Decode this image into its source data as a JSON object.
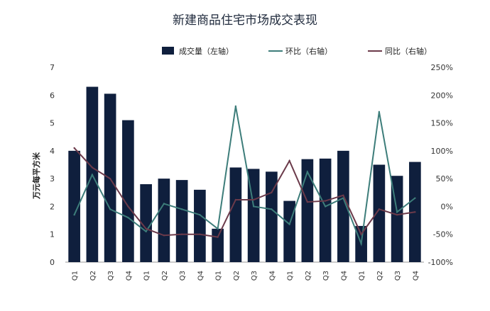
{
  "chart_data": {
    "type": "bar",
    "title": "新建商品住宅市场成交表现",
    "ylabel": "万元每平方米",
    "ylabel_right": "",
    "categories": [
      "Q1",
      "Q2",
      "Q3",
      "Q4",
      "Q1",
      "Q2",
      "Q3",
      "Q4",
      "Q1",
      "Q2",
      "Q3",
      "Q4",
      "Q1",
      "Q2",
      "Q3",
      "Q4",
      "Q1",
      "Q2",
      "Q3",
      "Q4"
    ],
    "ylim": [
      0,
      7
    ],
    "y2lim": [
      -100,
      250
    ],
    "y_ticks": [
      "0",
      "1",
      "2",
      "3",
      "4",
      "5",
      "6",
      "7"
    ],
    "y2_ticks": [
      "-100%",
      "-50%",
      "0%",
      "50%",
      "100%",
      "150%",
      "200%",
      "250%"
    ],
    "legend_position": "top",
    "grid": false,
    "series": [
      {
        "name": "成交量（左轴）",
        "type": "bar",
        "axis": "left",
        "color": "#0f1f3d",
        "values": [
          4.0,
          6.3,
          6.05,
          5.1,
          2.8,
          3.0,
          2.95,
          2.6,
          1.2,
          3.4,
          3.35,
          3.25,
          2.2,
          3.7,
          3.72,
          4.0,
          1.3,
          3.5,
          3.1,
          3.6
        ]
      },
      {
        "name": "环比（右轴）",
        "type": "line",
        "axis": "right",
        "color": "#3d7d7a",
        "values": [
          -15,
          57,
          -5,
          -20,
          -45,
          5,
          -5,
          -15,
          -40,
          180,
          0,
          -5,
          -32,
          62,
          0,
          15,
          -67,
          170,
          -10,
          15
        ]
      },
      {
        "name": "同比（右轴）",
        "type": "line",
        "axis": "right",
        "color": "#6b3a4a",
        "values": [
          105,
          70,
          50,
          0,
          -40,
          -52,
          -50,
          -50,
          -55,
          12,
          12,
          25,
          82,
          8,
          10,
          20,
          -50,
          -5,
          -15,
          -10
        ]
      }
    ]
  }
}
